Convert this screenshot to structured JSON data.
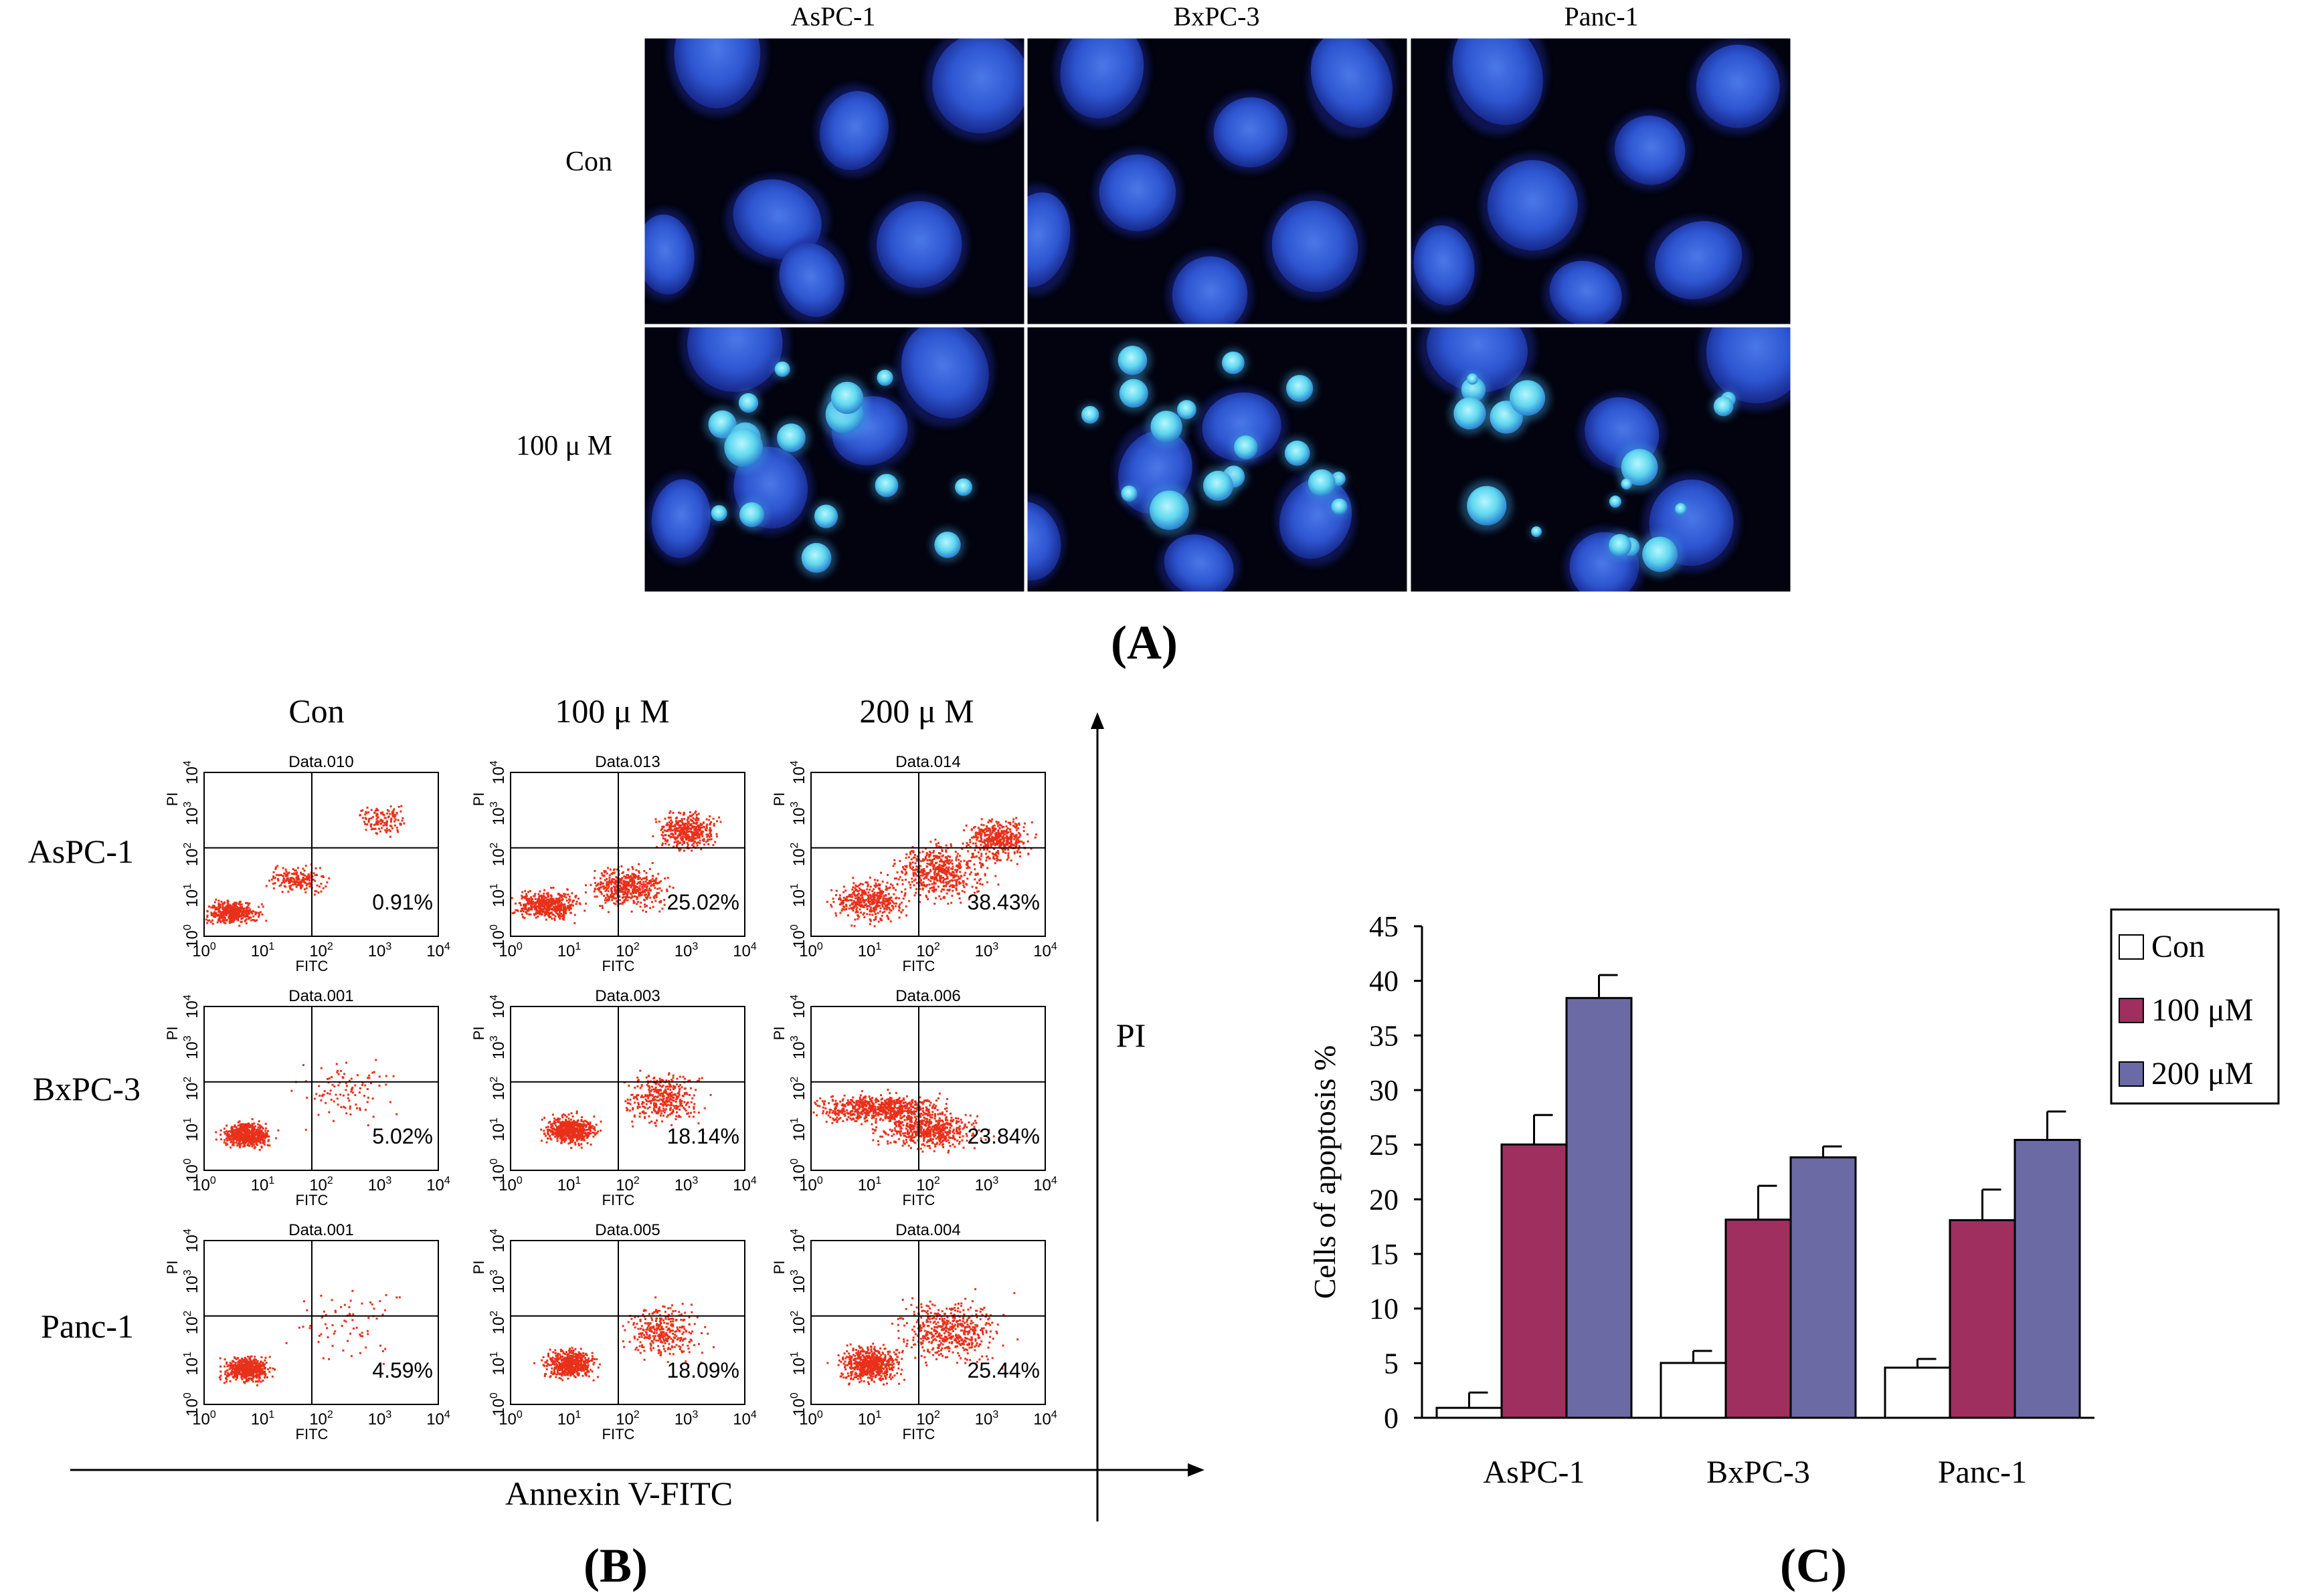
{
  "panel_a": {
    "label": "(A)",
    "columns": [
      "AsPC-1",
      "BxPC-3",
      "Panc-1"
    ],
    "rows": [
      "Con",
      "100 μ M"
    ]
  },
  "panel_b": {
    "label": "(B)",
    "columns": [
      "Con",
      "100 μ M",
      "200 μ M"
    ],
    "rows": [
      "AsPC-1",
      "BxPC-3",
      "Panc-1"
    ],
    "x_axis_title": "Annexin V-FITC",
    "y_axis_title": "PI",
    "plot_x_label": "FITC",
    "plot_y_label": "PI",
    "tick_labels": [
      "10",
      "10",
      "10",
      "10",
      "10"
    ],
    "tick_exponents": [
      "0",
      "1",
      "2",
      "3",
      "4"
    ],
    "plots": [
      [
        {
          "title": "Data.010",
          "percent": "0.91%",
          "pattern": "con-diag",
          "density": 0.55
        },
        {
          "title": "Data.013",
          "percent": "25.02%",
          "pattern": "treated-heavy",
          "density": 1.0
        },
        {
          "title": "Data.014",
          "percent": "38.43%",
          "pattern": "treated-max",
          "density": 1.0
        }
      ],
      [
        {
          "title": "Data.001",
          "percent": "5.02%",
          "pattern": "con-low",
          "density": 0.5
        },
        {
          "title": "Data.003",
          "percent": "18.14%",
          "pattern": "treated-mid",
          "density": 0.7
        },
        {
          "title": "Data.006",
          "percent": "23.84%",
          "pattern": "treated-band",
          "density": 0.9
        }
      ],
      [
        {
          "title": "Data.001",
          "percent": "4.59%",
          "pattern": "con-low",
          "density": 0.45
        },
        {
          "title": "Data.005",
          "percent": "18.09%",
          "pattern": "treated-mid",
          "density": 0.6
        },
        {
          "title": "Data.004",
          "percent": "25.44%",
          "pattern": "treated-spread",
          "density": 0.8
        }
      ]
    ]
  },
  "chart_data": {
    "type": "bar",
    "label": "(C)",
    "title": "",
    "xlabel": "",
    "ylabel": "Cells of apoptosis %",
    "categories": [
      "AsPC-1",
      "BxPC-3",
      "Panc-1"
    ],
    "ylim": [
      0,
      45
    ],
    "yticks": [
      0,
      5,
      10,
      15,
      20,
      25,
      30,
      35,
      40,
      45
    ],
    "legend_position": "top-right",
    "series": [
      {
        "name": "Con",
        "color": "#ffffff",
        "values": [
          0.91,
          5.02,
          4.59
        ],
        "errors": [
          1.4,
          1.1,
          0.8
        ]
      },
      {
        "name": "100 μM",
        "color": "#9e2f5e",
        "values": [
          25.02,
          18.14,
          18.09
        ],
        "errors": [
          2.7,
          3.1,
          2.8
        ]
      },
      {
        "name": "200 μM",
        "color": "#6b6aa5",
        "values": [
          38.43,
          23.84,
          25.44
        ],
        "errors": [
          2.1,
          1.0,
          2.6
        ]
      }
    ]
  },
  "colors": {
    "dot": "#e8301a",
    "micro_bg": "#02030f",
    "nucleus": "#2747c4",
    "nucleus_light": "#3a62dc",
    "apoptotic": "#6fe0f0"
  }
}
